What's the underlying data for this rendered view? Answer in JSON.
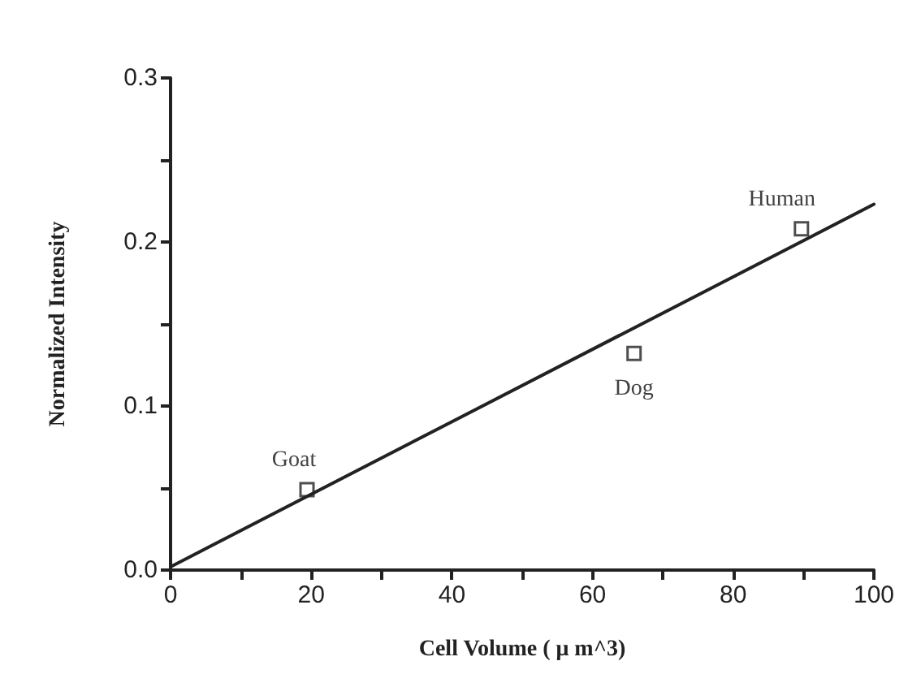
{
  "chart_data": {
    "type": "scatter",
    "xlabel": "Cell Volume ( μ m^3)",
    "ylabel": "Normalized Intensity",
    "series": [
      {
        "x": [
          19.4,
          65.9,
          89.7
        ],
        "values": [
          0.049,
          0.132,
          0.208
        ],
        "color": "#222222"
      },
      {
        "type": "line",
        "x": [
          0,
          100
        ],
        "values": [
          0.002,
          0.223
        ],
        "color": "#222222",
        "marker": "none",
        "line_style": "solid"
      }
    ],
    "annotations": [
      {
        "text": "Goat",
        "x": 19.4,
        "y": 0.049
      },
      {
        "text": "Dog",
        "x": 65.9,
        "y": 0.132
      },
      {
        "text": "Human",
        "x": 89.7,
        "y": 0.208
      }
    ],
    "xlim": [
      0,
      100
    ],
    "xticks": [
      0,
      {
        "value": 10,
        "label": null
      },
      20,
      {
        "value": 30,
        "label": null
      },
      40,
      {
        "value": 50,
        "label": null
      },
      60,
      {
        "value": 70,
        "label": null
      },
      80,
      {
        "value": 90,
        "label": null
      },
      100
    ],
    "ylim": [
      0,
      0.3
    ],
    "yticks": [
      {
        "value": 0,
        "label": "0.0"
      },
      {
        "value": 0.05,
        "label": null
      },
      {
        "value": 0.1,
        "label": "0.1"
      },
      {
        "value": 0.15,
        "label": null
      },
      {
        "value": 0.2,
        "label": "0.2"
      },
      {
        "value": 0.25,
        "label": null
      },
      {
        "value": 0.3,
        "label": "0.3"
      }
    ],
    "marker": "square"
  }
}
